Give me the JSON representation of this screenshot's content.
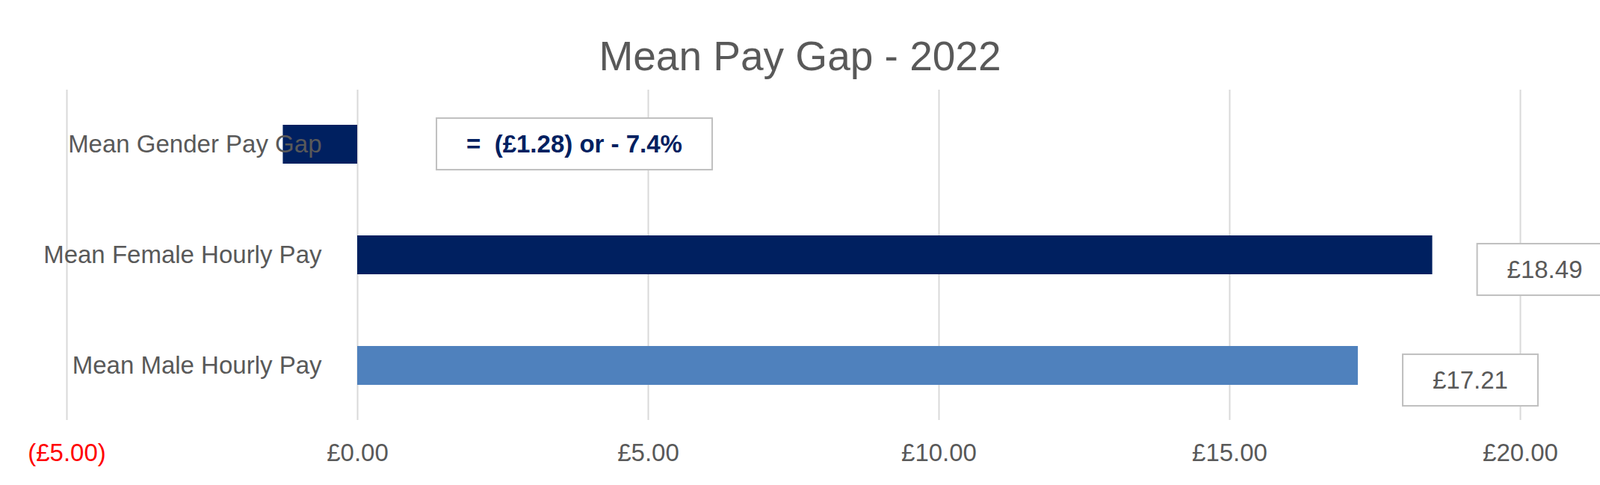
{
  "chart_data": {
    "type": "bar",
    "title": "Mean Pay Gap - 2022",
    "orientation": "horizontal",
    "categories": [
      "Mean Gender Pay Gap",
      "Mean Female Hourly Pay",
      "Mean Male Hourly Pay"
    ],
    "values": [
      -1.28,
      18.49,
      17.21
    ],
    "value_labels": [
      "=  (£1.28) or - 7.4%",
      "£18.49",
      "£17.21"
    ],
    "colors": [
      "#002060",
      "#002060",
      "#4f81bd"
    ],
    "xlim": [
      -5,
      20
    ],
    "xticks": [
      {
        "value": -5,
        "label": "(£5.00)"
      },
      {
        "value": 0,
        "label": "£0.00"
      },
      {
        "value": 5,
        "label": "£5.00"
      },
      {
        "value": 10,
        "label": "£10.00"
      },
      {
        "value": 15,
        "label": "£15.00"
      },
      {
        "value": 20,
        "label": "£20.00"
      }
    ],
    "grid": true,
    "data_labels": true
  }
}
